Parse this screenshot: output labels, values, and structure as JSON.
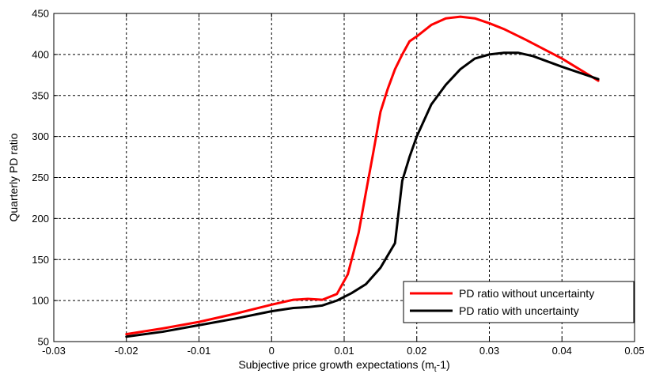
{
  "chart_data": {
    "type": "line",
    "title": "",
    "xlabel": "Subjective price growth expectations (m",
    "xlabel_sub": "t",
    "xlabel_tail": "-1)",
    "ylabel": "Quarterly PD ratio",
    "xlim": [
      -0.03,
      0.05
    ],
    "ylim": [
      50,
      450
    ],
    "xticks": [
      -0.03,
      -0.02,
      -0.01,
      0,
      0.01,
      0.02,
      0.03,
      0.04,
      0.05
    ],
    "xtick_labels": [
      "-0.03",
      "-0.02",
      "-0.01",
      "0",
      "0.01",
      "0.02",
      "0.03",
      "0.04",
      "0.05"
    ],
    "yticks": [
      50,
      100,
      150,
      200,
      250,
      300,
      350,
      400,
      450
    ],
    "ytick_labels": [
      "50",
      "100",
      "150",
      "200",
      "250",
      "300",
      "350",
      "400",
      "450"
    ],
    "grid": true,
    "legend_position": "bottom-right",
    "series": [
      {
        "name": "PD ratio without uncertainty",
        "color": "#ff0000",
        "x": [
          -0.02,
          -0.015,
          -0.01,
          -0.005,
          0,
          0.003,
          0.005,
          0.007,
          0.009,
          0.0105,
          0.012,
          0.013,
          0.014,
          0.015,
          0.016,
          0.017,
          0.018,
          0.019,
          0.02,
          0.022,
          0.024,
          0.026,
          0.028,
          0.03,
          0.032,
          0.035,
          0.04,
          0.045
        ],
        "y": [
          59,
          66,
          74,
          84,
          95,
          101,
          102,
          101,
          108,
          132,
          183,
          232,
          280,
          330,
          358,
          382,
          400,
          416,
          422,
          436,
          444,
          446,
          444,
          438,
          431,
          418,
          395,
          368
        ]
      },
      {
        "name": "PD ratio with uncertainty",
        "color": "#000000",
        "x": [
          -0.02,
          -0.015,
          -0.01,
          -0.005,
          0,
          0.003,
          0.005,
          0.007,
          0.009,
          0.011,
          0.013,
          0.015,
          0.016,
          0.017,
          0.018,
          0.019,
          0.02,
          0.022,
          0.024,
          0.026,
          0.028,
          0.03,
          0.032,
          0.034,
          0.036,
          0.04,
          0.045
        ],
        "y": [
          56,
          62,
          70,
          78,
          87,
          91,
          92,
          94,
          100,
          109,
          120,
          140,
          155,
          170,
          246,
          275,
          300,
          339,
          363,
          382,
          395,
          400,
          402,
          402,
          398,
          385,
          370
        ]
      }
    ]
  }
}
